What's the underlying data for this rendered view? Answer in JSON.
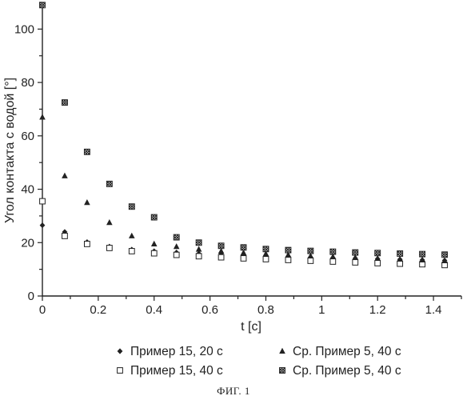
{
  "chart_data": {
    "type": "scatter",
    "xlabel": "t [c]",
    "ylabel": "Угол контакта с водой [°]",
    "xlim": [
      0,
      1.5
    ],
    "ylim": [
      0,
      110
    ],
    "x_ticks": [
      0,
      0.2,
      0.4,
      0.6,
      0.8,
      1,
      1.2,
      1.4
    ],
    "x_tick_labels": [
      "0",
      "0.2",
      "0.4",
      "0.6",
      "0.8",
      "1",
      "1.2",
      "1.4"
    ],
    "y_ticks": [
      0,
      20,
      40,
      60,
      80,
      100
    ],
    "y_tick_labels": [
      "0",
      "20",
      "40",
      "60",
      "80",
      "100"
    ],
    "legend_position": "bottom",
    "series": [
      {
        "name": "Пример 15, 20 с",
        "marker": "diamond",
        "x": [
          0,
          0.08,
          0.16,
          0.24,
          0.32,
          0.4,
          0.48,
          0.56,
          0.64,
          0.72,
          0.8,
          0.88,
          0.96,
          1.04,
          1.12,
          1.2,
          1.28,
          1.36,
          1.44
        ],
        "y": [
          26.5,
          24,
          20.2,
          18.5,
          17.4,
          16.8,
          16.3,
          15.9,
          15.6,
          15.3,
          15,
          14.8,
          14.5,
          14.3,
          14.1,
          13.9,
          13.7,
          13.5,
          13.3
        ]
      },
      {
        "name": "Пример 15, 40 с",
        "marker": "square-open",
        "x": [
          0,
          0.08,
          0.16,
          0.24,
          0.32,
          0.4,
          0.48,
          0.56,
          0.64,
          0.72,
          0.8,
          0.88,
          0.96,
          1.04,
          1.12,
          1.2,
          1.28,
          1.36,
          1.44
        ],
        "y": [
          35.5,
          22.5,
          19.5,
          18,
          16.8,
          16,
          15.4,
          14.9,
          14.5,
          14.1,
          13.8,
          13.5,
          13.2,
          12.9,
          12.6,
          12.3,
          12.1,
          11.9,
          11.6
        ]
      },
      {
        "name": "Ср. Пример 5, 40 с",
        "marker": "triangle",
        "x": [
          0,
          0.08,
          0.16,
          0.24,
          0.32,
          0.4,
          0.48,
          0.56,
          0.64,
          0.72,
          0.8,
          0.88,
          0.96,
          1.04,
          1.12,
          1.2,
          1.28,
          1.36,
          1.44
        ],
        "y": [
          67,
          45,
          35,
          27.5,
          22.5,
          19.5,
          18.5,
          17.5,
          16.8,
          16.2,
          15.8,
          15.4,
          15,
          14.7,
          14.4,
          14.1,
          13.8,
          13.5,
          13.2
        ]
      },
      {
        "name": "Ср. Пример 5, 40 с",
        "marker": "square-hatched",
        "x": [
          0,
          0.08,
          0.16,
          0.24,
          0.32,
          0.4,
          0.48,
          0.56,
          0.64,
          0.72,
          0.8,
          0.88,
          0.96,
          1.04,
          1.12,
          1.2,
          1.28,
          1.36,
          1.44
        ],
        "y": [
          109,
          72.5,
          54,
          42,
          33.5,
          29.5,
          22,
          20,
          18.8,
          18.2,
          17.6,
          17.2,
          16.9,
          16.6,
          16.3,
          16.1,
          15.9,
          15.7,
          15.5
        ]
      }
    ]
  },
  "caption": "ФИГ. 1",
  "colors": {
    "ink": "#222222",
    "background": "#ffffff"
  }
}
